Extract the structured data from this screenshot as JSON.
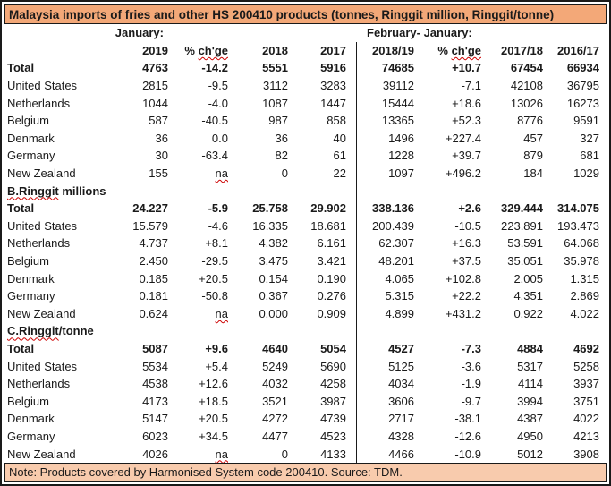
{
  "title": "Malaysia imports of fries and other HS 200410 products (tonnes, Ringgit million, Ringgit/tonne)",
  "header": {
    "left_period_label": "January:",
    "right_period_label": "February- January:",
    "columns_left": [
      "2019",
      "% ch'ge",
      "2018",
      "2017"
    ],
    "columns_right": [
      "2018/19",
      "% ch'ge",
      "2017/18",
      "2016/17"
    ]
  },
  "squiggle_words": [
    "ch'ge",
    "na",
    "B.Ringgit",
    "C.Ringgit"
  ],
  "sections": [
    {
      "name": "",
      "rows": [
        {
          "label": "Total",
          "bold": true,
          "values": [
            "4763",
            "-14.2",
            "5551",
            "5916",
            "74685",
            "+10.7",
            "67454",
            "66934"
          ]
        },
        {
          "label": "United States",
          "values": [
            "2815",
            "-9.5",
            "3112",
            "3283",
            "39112",
            "-7.1",
            "42108",
            "36795"
          ]
        },
        {
          "label": "Netherlands",
          "values": [
            "1044",
            "-4.0",
            "1087",
            "1447",
            "15444",
            "+18.6",
            "13026",
            "16273"
          ]
        },
        {
          "label": "Belgium",
          "values": [
            "587",
            "-40.5",
            "987",
            "858",
            "13365",
            "+52.3",
            "8776",
            "9591"
          ]
        },
        {
          "label": "Denmark",
          "values": [
            "36",
            "0.0",
            "36",
            "40",
            "1496",
            "+227.4",
            "457",
            "327"
          ]
        },
        {
          "label": "Germany",
          "values": [
            "30",
            "-63.4",
            "82",
            "61",
            "1228",
            "+39.7",
            "879",
            "681"
          ]
        },
        {
          "label": "New Zealand",
          "values": [
            "155",
            "na",
            "0",
            "22",
            "1097",
            "+496.2",
            "184",
            "1029"
          ]
        }
      ]
    },
    {
      "name": "B.Ringgit millions",
      "rows": [
        {
          "label": "Total",
          "bold": true,
          "values": [
            "24.227",
            "-5.9",
            "25.758",
            "29.902",
            "338.136",
            "+2.6",
            "329.444",
            "314.075"
          ]
        },
        {
          "label": "United States",
          "values": [
            "15.579",
            "-4.6",
            "16.335",
            "18.681",
            "200.439",
            "-10.5",
            "223.891",
            "193.473"
          ]
        },
        {
          "label": "Netherlands",
          "values": [
            "4.737",
            "+8.1",
            "4.382",
            "6.161",
            "62.307",
            "+16.3",
            "53.591",
            "64.068"
          ]
        },
        {
          "label": "Belgium",
          "values": [
            "2.450",
            "-29.5",
            "3.475",
            "3.421",
            "48.201",
            "+37.5",
            "35.051",
            "35.978"
          ]
        },
        {
          "label": "Denmark",
          "values": [
            "0.185",
            "+20.5",
            "0.154",
            "0.190",
            "4.065",
            "+102.8",
            "2.005",
            "1.315"
          ]
        },
        {
          "label": "Germany",
          "values": [
            "0.181",
            "-50.8",
            "0.367",
            "0.276",
            "5.315",
            "+22.2",
            "4.351",
            "2.869"
          ]
        },
        {
          "label": "New Zealand",
          "values": [
            "0.624",
            "na",
            "0.000",
            "0.909",
            "4.899",
            "+431.2",
            "0.922",
            "4.022"
          ]
        }
      ]
    },
    {
      "name": "C.Ringgit/tonne",
      "rows": [
        {
          "label": "Total",
          "bold": true,
          "values": [
            "5087",
            "+9.6",
            "4640",
            "5054",
            "4527",
            "-7.3",
            "4884",
            "4692"
          ]
        },
        {
          "label": "United States",
          "values": [
            "5534",
            "+5.4",
            "5249",
            "5690",
            "5125",
            "-3.6",
            "5317",
            "5258"
          ]
        },
        {
          "label": "Netherlands",
          "values": [
            "4538",
            "+12.6",
            "4032",
            "4258",
            "4034",
            "-1.9",
            "4114",
            "3937"
          ]
        },
        {
          "label": "Belgium",
          "values": [
            "4173",
            "+18.5",
            "3521",
            "3987",
            "3606",
            "-9.7",
            "3994",
            "3751"
          ]
        },
        {
          "label": "Denmark",
          "values": [
            "5147",
            "+20.5",
            "4272",
            "4739",
            "2717",
            "-38.1",
            "4387",
            "4022"
          ]
        },
        {
          "label": "Germany",
          "values": [
            "6023",
            "+34.5",
            "4477",
            "4523",
            "4328",
            "-12.6",
            "4950",
            "4213"
          ]
        },
        {
          "label": "New Zealand",
          "values": [
            "4026",
            "na",
            "0",
            "4133",
            "4466",
            "-10.9",
            "5012",
            "3908"
          ]
        }
      ]
    }
  ],
  "note": "Note: Products covered by Harmonised System code 200410. Source: TDM.",
  "colors": {
    "title_bg": "#F3A878",
    "note_bg": "#F8CBAD",
    "border": "#1A1A1A",
    "squiggle": "#CC0000",
    "text": "#1A1A1A"
  }
}
